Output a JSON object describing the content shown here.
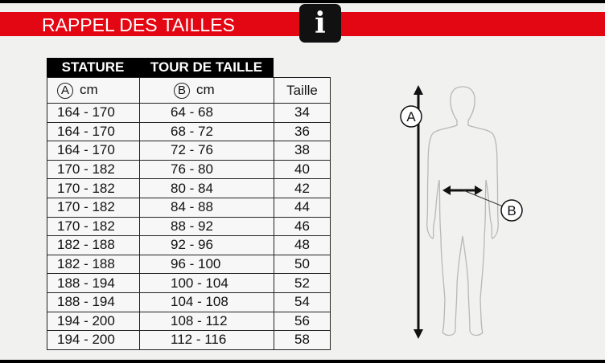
{
  "title": "RAPPEL DES TAILLES",
  "info_icon": "info-icon",
  "colors": {
    "band": "#e30613",
    "header": "#000000"
  },
  "table": {
    "headers": [
      "STATURE",
      "TOUR DE TAILLE"
    ],
    "subheaders": {
      "a_marker": "A",
      "a_unit": "cm",
      "b_marker": "B",
      "b_unit": "cm",
      "size": "Taille"
    },
    "rows": [
      [
        "164 - 170",
        "64 - 68",
        "34"
      ],
      [
        "164 - 170",
        "68 - 72",
        "36"
      ],
      [
        "164 - 170",
        "72 - 76",
        "38"
      ],
      [
        "170 - 182",
        "76 - 80",
        "40"
      ],
      [
        "170 - 182",
        "80 - 84",
        "42"
      ],
      [
        "170 - 182",
        "84 - 88",
        "44"
      ],
      [
        "170 - 182",
        "88 - 92",
        "46"
      ],
      [
        "182 - 188",
        "92 - 96",
        "48"
      ],
      [
        "182 - 188",
        "96 - 100",
        "50"
      ],
      [
        "188 - 194",
        "100 - 104",
        "52"
      ],
      [
        "188 - 194",
        "104 - 108",
        "54"
      ],
      [
        "194 - 200",
        "108 - 112",
        "56"
      ],
      [
        "194 - 200",
        "112 - 116",
        "58"
      ]
    ]
  },
  "figure": {
    "label_a": "A",
    "label_b": "B"
  }
}
